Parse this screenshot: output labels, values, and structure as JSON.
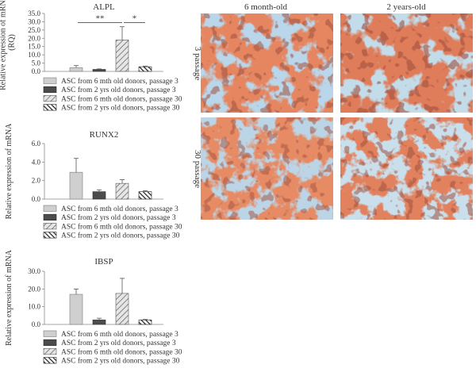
{
  "legend_entries": [
    {
      "label": "ASC from 6 mth old donors, passage 3",
      "pattern": "light"
    },
    {
      "label": "ASC from 2 yrs old donors, passage 3",
      "pattern": "dark"
    },
    {
      "label": "ASC from 6 mth old donors, passage 30",
      "pattern": "hatch-light"
    },
    {
      "label": "ASC from 2 yrs old donors, passage 30",
      "pattern": "hatch-dark"
    }
  ],
  "colors": {
    "light_bar": "#cfcfcf",
    "dark_bar": "#4c4c4c",
    "axis": "#8a8a8a",
    "stain_red": "#c0391b",
    "stain_background": "#b9d6ea"
  },
  "micrographs": {
    "column_labels": [
      "6 month-old",
      "2 years-old"
    ],
    "row_labels": [
      "3 passage",
      "30 passage"
    ]
  },
  "chart_data": [
    {
      "type": "bar",
      "title": "ALPL",
      "ylabel": "Relative expression of mRNA (RQ)",
      "ylabel_lines": [
        "Relative expression of mRNA",
        "(RQ)"
      ],
      "ylim": [
        0,
        35
      ],
      "yticks": [
        "0.0",
        "5.0",
        "10.0",
        "15.0",
        "20.0",
        "25.0",
        "30.0",
        "35.0"
      ],
      "series": [
        {
          "name": "ASC from 6 mth old donors, passage 3",
          "value": 2.3,
          "error": 1.2
        },
        {
          "name": "ASC from 2 yrs old donors, passage 3",
          "value": 1.2,
          "error": 0.3
        },
        {
          "name": "ASC from 6 mth old donors, passage 30",
          "value": 19.0,
          "error": 8.0
        },
        {
          "name": "ASC from 2 yrs old donors, passage 30",
          "value": 2.8,
          "error": 0.4
        }
      ],
      "significance": [
        {
          "from": 1,
          "to": 2,
          "y": 29.5,
          "label": "**"
        },
        {
          "from": 2,
          "to": 3,
          "y": 29.5,
          "label": "*"
        }
      ]
    },
    {
      "type": "bar",
      "title": "RUNX2",
      "ylabel": "Relative expression of mRNA",
      "ylabel_lines": [
        "Relative expression of mRNA"
      ],
      "ylim": [
        0,
        6
      ],
      "yticks": [
        "0.0",
        "2.0",
        "4.0",
        "6.0"
      ],
      "series": [
        {
          "name": "ASC from 6 mth old donors, passage 3",
          "value": 2.9,
          "error": 1.5
        },
        {
          "name": "ASC from 2 yrs old donors, passage 3",
          "value": 0.8,
          "error": 0.2
        },
        {
          "name": "ASC from 6 mth old donors, passage 30",
          "value": 1.7,
          "error": 0.4
        },
        {
          "name": "ASC from 2 yrs old donors, passage 30",
          "value": 0.8,
          "error": 0.1
        }
      ],
      "significance": []
    },
    {
      "type": "bar",
      "title": "IBSP",
      "ylabel": "Relative expression of mRNA",
      "ylabel_lines": [
        "Relative expression of mRNA"
      ],
      "ylim": [
        0,
        30
      ],
      "yticks": [
        "0.0",
        "10.0",
        "20.0",
        "30.0"
      ],
      "series": [
        {
          "name": "ASC from 6 mth old donors, passage 3",
          "value": 17.0,
          "error": 3.0
        },
        {
          "name": "ASC from 2 yrs old donors, passage 3",
          "value": 2.5,
          "error": 1.0
        },
        {
          "name": "ASC from 6 mth old donors, passage 30",
          "value": 17.5,
          "error": 8.5
        },
        {
          "name": "ASC from 2 yrs old donors, passage 30",
          "value": 2.5,
          "error": 0.3
        }
      ],
      "significance": []
    }
  ]
}
